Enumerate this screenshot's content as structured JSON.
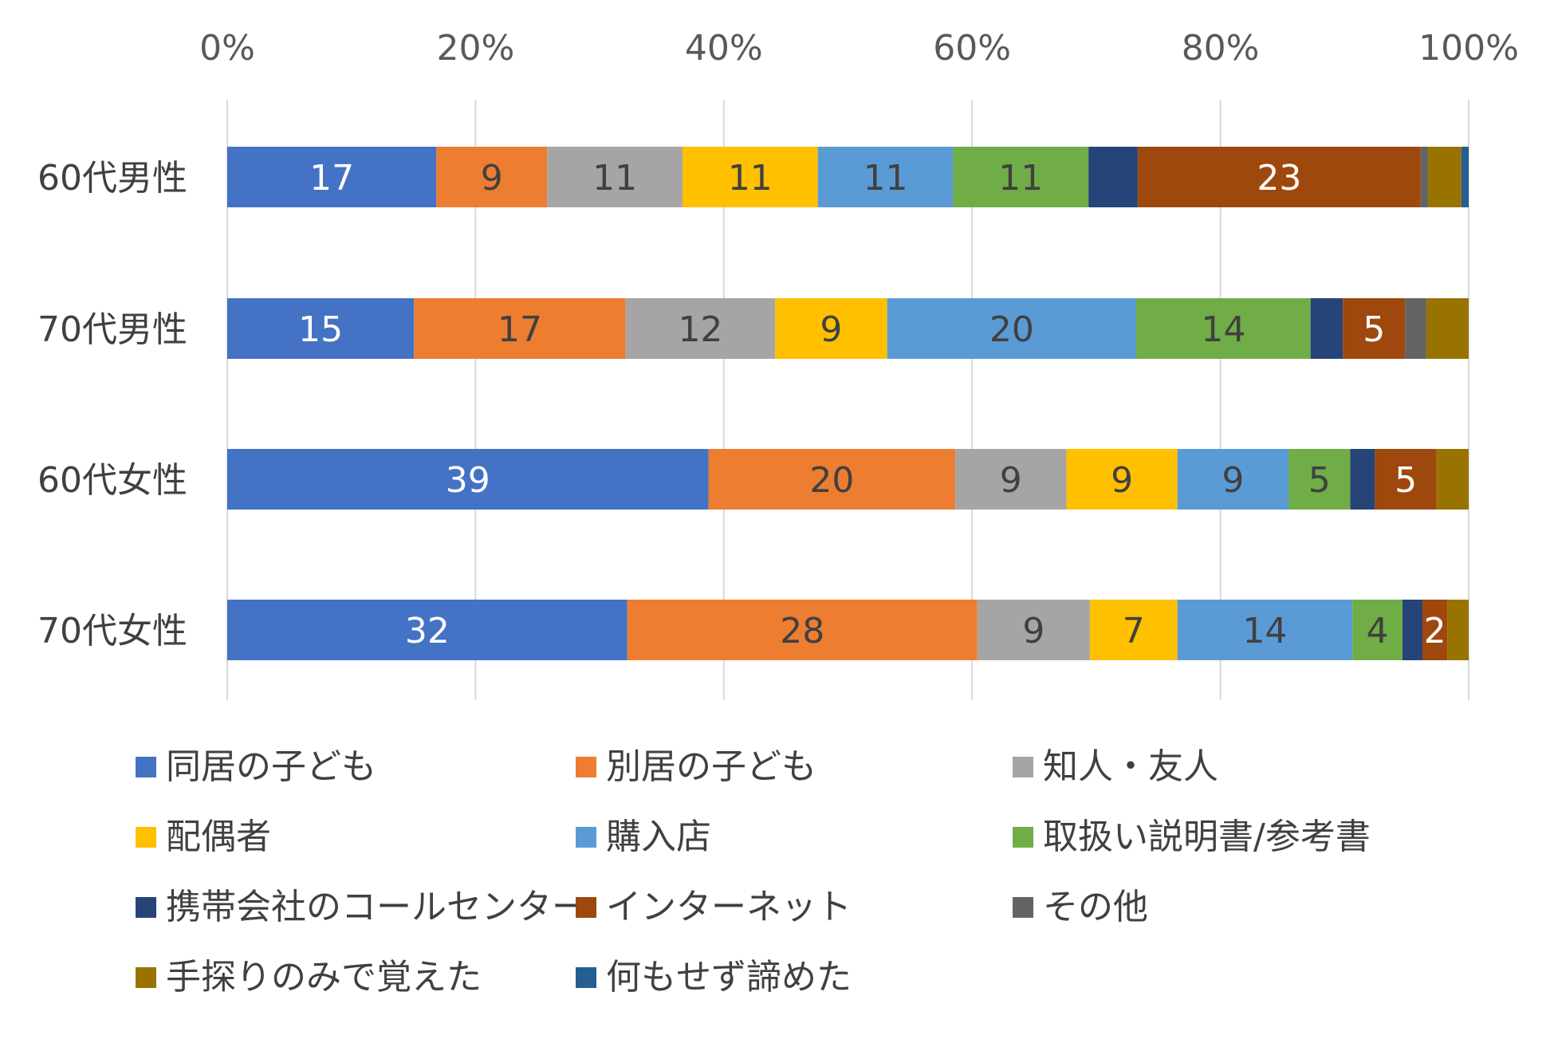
{
  "chart_data": {
    "type": "bar",
    "orientation": "horizontal",
    "stacked": "percent",
    "x_ticks": [
      "0%",
      "20%",
      "40%",
      "60%",
      "80%",
      "100%"
    ],
    "xlim": [
      0,
      100
    ],
    "grid": "vertical",
    "legend_position": "bottom",
    "categories": [
      "60代男性",
      "70代男性",
      "60代女性",
      "70代女性"
    ],
    "series": [
      {
        "name": "同居の子ども",
        "color": "#4472C4",
        "label_color": "#ffffff",
        "values": [
          17,
          15,
          39,
          32
        ]
      },
      {
        "name": "別居の子ども",
        "color": "#ED7D31",
        "label_color": "#404040",
        "values": [
          9,
          17,
          20,
          28
        ]
      },
      {
        "name": "知人・友人",
        "color": "#A5A5A5",
        "label_color": "#404040",
        "values": [
          11,
          12,
          9,
          9
        ]
      },
      {
        "name": "配偶者",
        "color": "#FFC000",
        "label_color": "#404040",
        "values": [
          11,
          9,
          9,
          7
        ]
      },
      {
        "name": "購入店",
        "color": "#5B9BD5",
        "label_color": "#404040",
        "values": [
          11,
          20,
          9,
          14
        ]
      },
      {
        "name": "取扱い説明書/参考書",
        "color": "#70AD47",
        "label_color": "#404040",
        "values": [
          11,
          14,
          5,
          4
        ]
      },
      {
        "name": "携帯会社のコールセンター",
        "color": "#264478",
        "label_color": "#ffffff",
        "values": [
          4,
          2.6,
          2,
          1.6
        ]
      },
      {
        "name": "インターネット",
        "color": "#9E480E",
        "label_color": "#ffffff",
        "values": [
          23,
          5,
          5,
          2
        ]
      },
      {
        "name": "その他",
        "color": "#636363",
        "label_color": "#ffffff",
        "values": [
          0.6,
          1.7,
          0,
          0
        ]
      },
      {
        "name": "手探りのみで覚えた",
        "color": "#997300",
        "label_color": "#ffffff",
        "values": [
          2.7,
          3.4,
          2.6,
          1.7
        ]
      },
      {
        "name": "何もせず諦めた",
        "color": "#255E91",
        "label_color": "#ffffff",
        "values": [
          0.6,
          0,
          0,
          0
        ]
      }
    ],
    "data_labels": [
      [
        "17",
        "9",
        "11",
        "11",
        "11",
        "11",
        "",
        "23",
        "",
        "",
        ""
      ],
      [
        "15",
        "17",
        "12",
        "9",
        "20",
        "14",
        "",
        "5",
        "",
        "",
        ""
      ],
      [
        "39",
        "20",
        "9",
        "9",
        "9",
        "5",
        "",
        "5",
        "",
        "",
        ""
      ],
      [
        "32",
        "28",
        "9",
        "7",
        "14",
        "4",
        "",
        "2",
        "",
        "",
        ""
      ]
    ]
  }
}
